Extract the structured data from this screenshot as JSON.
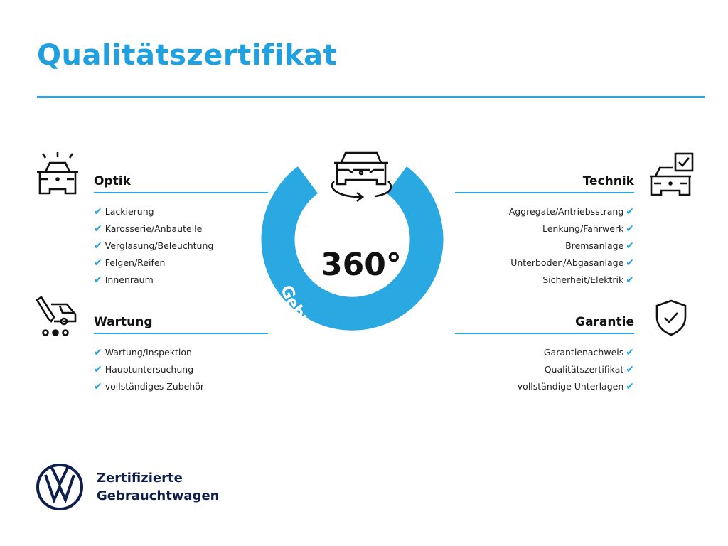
{
  "title": "Qualitätszertifikat",
  "center": {
    "value": "360°",
    "ring_text": "Gebrauchtwagen-Check"
  },
  "sections": {
    "optik": {
      "title": "Optik",
      "items": [
        "Lackierung",
        "Karosserie/Anbauteile",
        "Verglasung/Beleuchtung",
        "Felgen/Reifen",
        "Innenraum"
      ]
    },
    "wartung": {
      "title": "Wartung",
      "items": [
        "Wartung/Inspektion",
        "Hauptuntersuchung",
        "vollständiges Zubehör"
      ]
    },
    "technik": {
      "title": "Technik",
      "items": [
        "Aggregate/Antriebsstrang",
        "Lenkung/Fahrwerk",
        "Bremsanlage",
        "Unterboden/Abgasanlage",
        "Sicherheit/Elektrik"
      ]
    },
    "garantie": {
      "title": "Garantie",
      "items": [
        "Garantienachweis",
        "Qualitätszertifikat",
        "vollständige Unterlagen"
      ]
    }
  },
  "check_glyph": "✔",
  "brand": {
    "line1": "Zertifizierte",
    "line2": "Gebrauchtwagen",
    "logo": "VW"
  },
  "colors": {
    "accent": "#1fa0e0",
    "brand": "#0f1e4d"
  }
}
